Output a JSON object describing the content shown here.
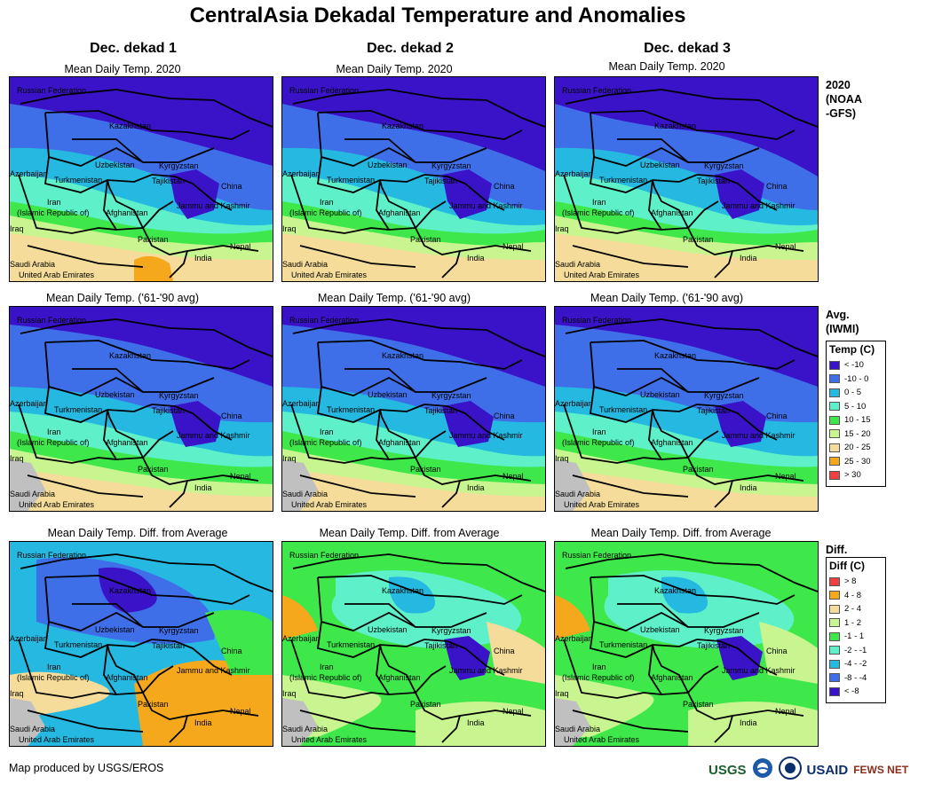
{
  "title": "CentralAsia Dekadal Temperature and Anomalies",
  "columns": [
    "Dec. dekad 1",
    "Dec. dekad 2",
    "Dec. dekad 3"
  ],
  "row_subtitles": [
    "Mean Daily Temp. 2020",
    "Mean Daily Temp. ('61-'90 avg)",
    "Mean Daily Temp. Diff. from Average"
  ],
  "row_labels": {
    "row1": [
      "2020",
      "(NOAA",
      "-GFS)"
    ],
    "row2": [
      "Avg.",
      "(IWMI)"
    ],
    "row3": [
      "Diff."
    ]
  },
  "map_labels": {
    "russia": "Russian Federation",
    "kazakhstan": "Kazakhstan",
    "uzbekistan": "Uzbekistan",
    "kyrgyzstan": "Kyrgyzstan",
    "tajikistan": "Tajikistan",
    "azerbaijan": "Azerbaijan",
    "turkmenistan": "Turkmenistan",
    "china": "China",
    "iran": "Iran",
    "iran2": "(Islamic Republic of)",
    "afghanistan": "Afghanistan",
    "jammu": "Jammu and Kashmir",
    "iraq": "Iraq",
    "pakistan": "Pakistan",
    "nepal": "Nepal",
    "india": "India",
    "saudi": "Saudi Arabia",
    "uae": "United Arab Emirates"
  },
  "temp_legend": {
    "title": "Temp (C)",
    "items": [
      {
        "label": "< -10",
        "color": "#3a12c8"
      },
      {
        "label": "-10 - 0",
        "color": "#3f6fe8"
      },
      {
        "label": "0 - 5",
        "color": "#25b8e0"
      },
      {
        "label": "5 - 10",
        "color": "#5ef0c8"
      },
      {
        "label": "10 - 15",
        "color": "#3fe84a"
      },
      {
        "label": "15 - 20",
        "color": "#c8f590"
      },
      {
        "label": "20 - 25",
        "color": "#f5dc9a"
      },
      {
        "label": "25 - 30",
        "color": "#f5a81c"
      },
      {
        "label": "> 30",
        "color": "#f04040"
      }
    ]
  },
  "diff_legend": {
    "title": "Diff (C)",
    "items": [
      {
        "label": "> 8",
        "color": "#f04040"
      },
      {
        "label": "4 - 8",
        "color": "#f5a81c"
      },
      {
        "label": "2 - 4",
        "color": "#f5dc9a"
      },
      {
        "label": "1 - 2",
        "color": "#c8f590"
      },
      {
        "label": "-1 - 1",
        "color": "#3fe84a"
      },
      {
        "label": "-2 - -1",
        "color": "#5ef0c8"
      },
      {
        "label": "-4 - -2",
        "color": "#25b8e0"
      },
      {
        "label": "-8 - -4",
        "color": "#3f6fe8"
      },
      {
        "label": "< -8",
        "color": "#3a12c8"
      }
    ]
  },
  "footer": "Map produced by USGS/EROS",
  "logos": {
    "usgs": "USGS",
    "usaid": "USAID",
    "fewsnet": "FEWS NET"
  }
}
